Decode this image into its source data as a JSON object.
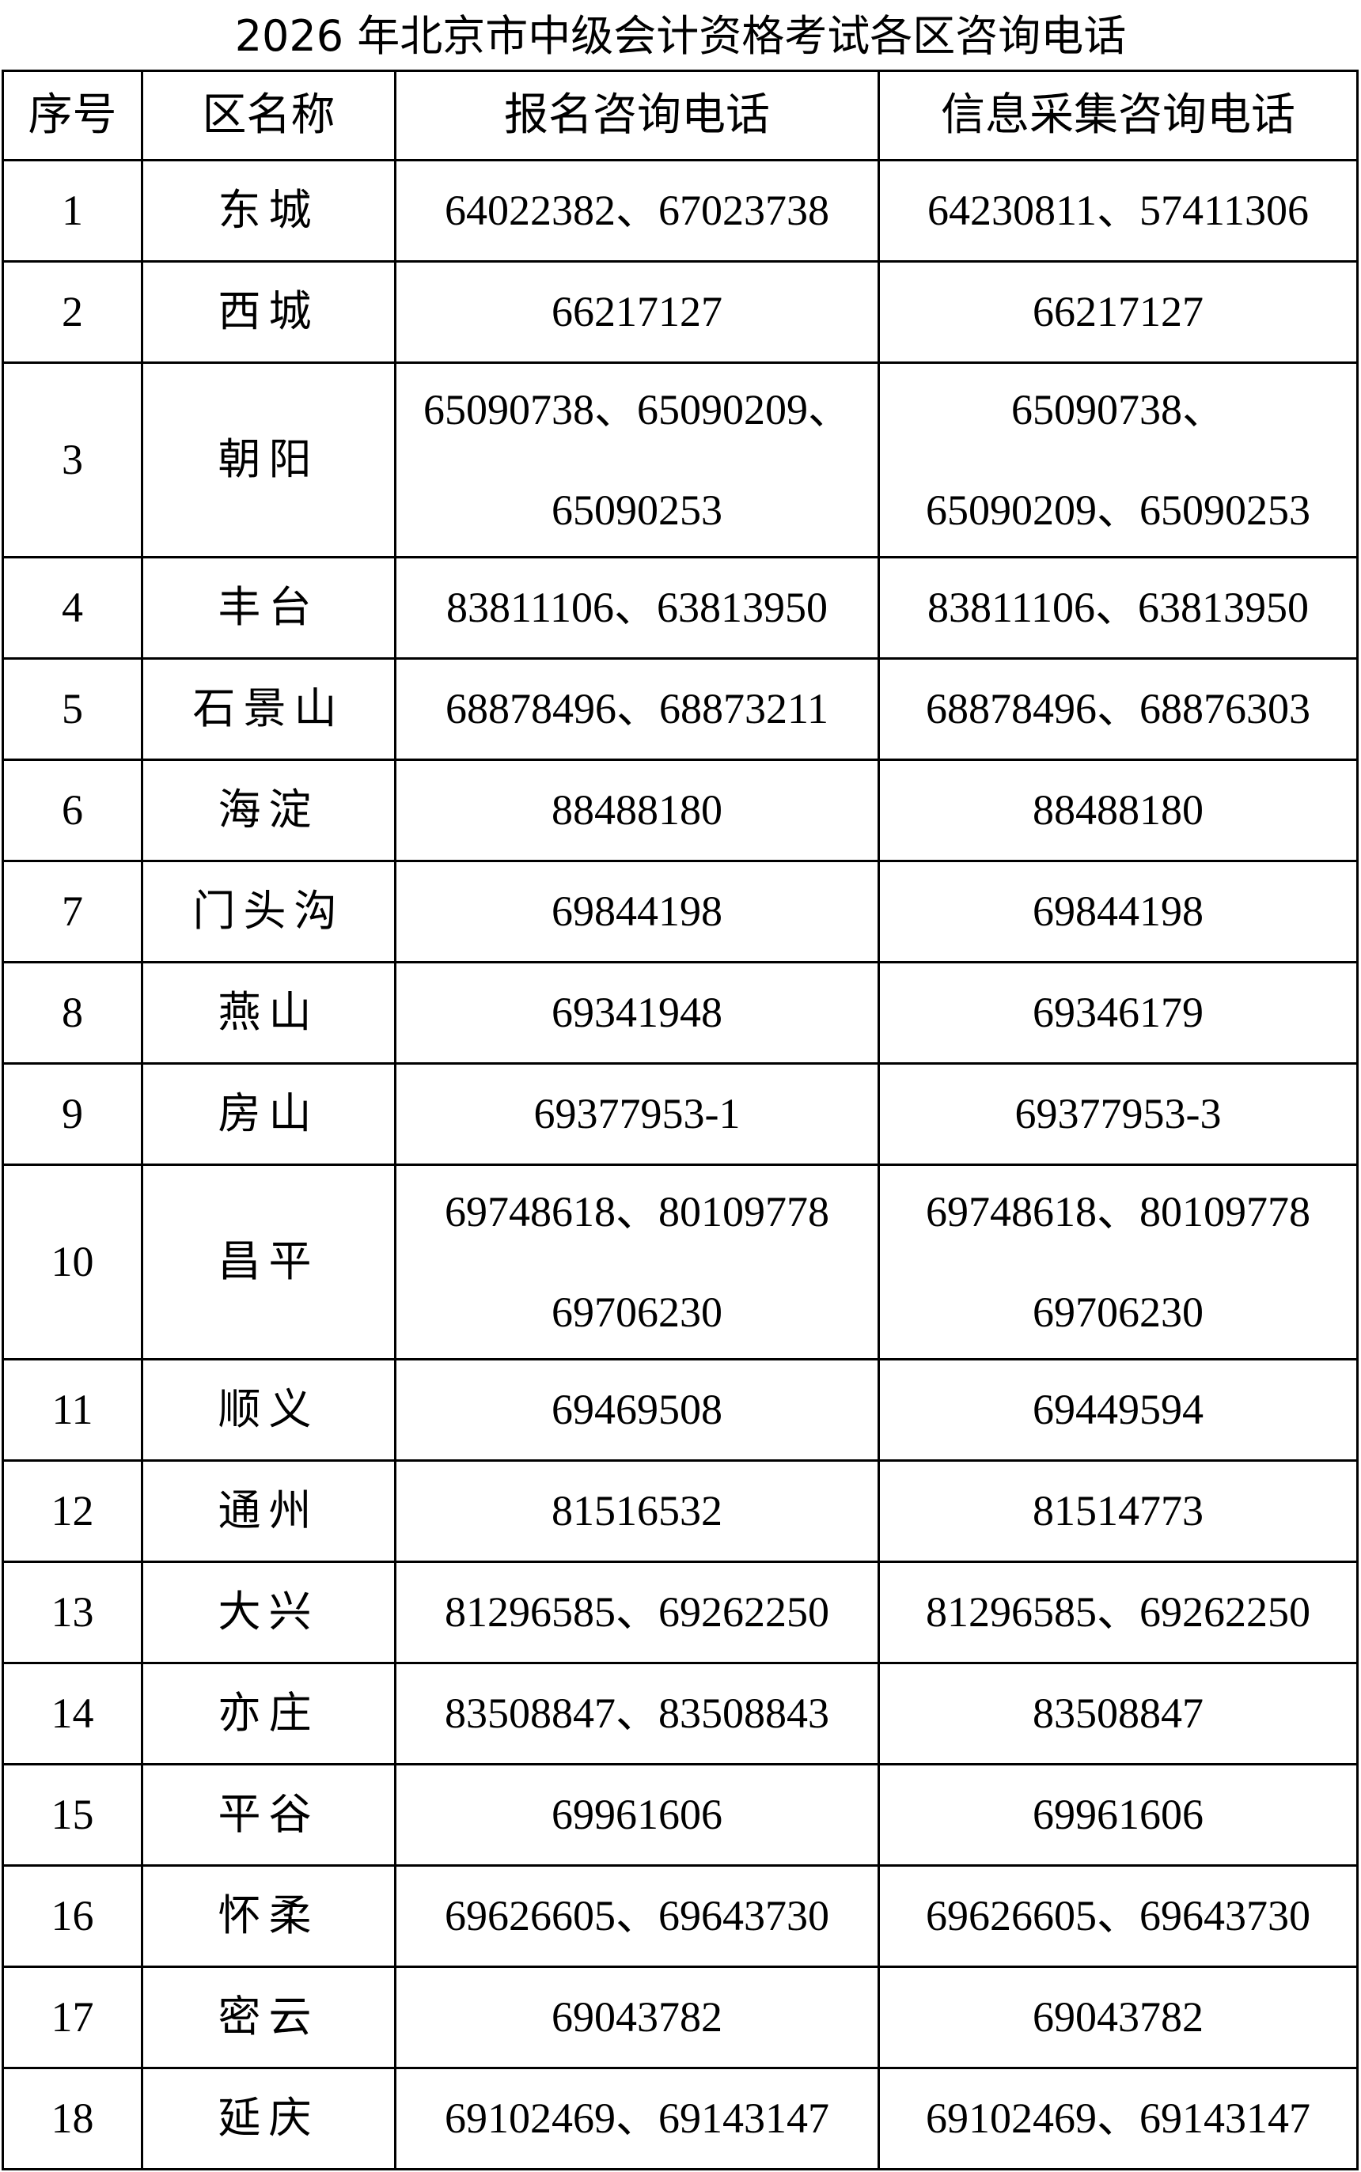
{
  "title": "2026 年北京市中级会计资格考试各区咨询电话",
  "headers": [
    "序号",
    "区名称",
    "报名咨询电话",
    "信息采集咨询电话"
  ],
  "rows": [
    {
      "no": "1",
      "district": "东城",
      "registration": [
        "64022382、67023738"
      ],
      "info": [
        "64230811、57411306"
      ]
    },
    {
      "no": "2",
      "district": "西城",
      "registration": [
        "66217127"
      ],
      "info": [
        "66217127"
      ]
    },
    {
      "no": "3",
      "district": "朝阳",
      "registration": [
        "65090738、65090209、",
        "65090253"
      ],
      "info": [
        "65090738、",
        "65090209、65090253"
      ]
    },
    {
      "no": "4",
      "district": "丰台",
      "registration": [
        "83811106、63813950"
      ],
      "info": [
        "83811106、63813950"
      ]
    },
    {
      "no": "5",
      "district": "石景山",
      "registration": [
        "68878496、68873211"
      ],
      "info": [
        "68878496、68876303"
      ]
    },
    {
      "no": "6",
      "district": "海淀",
      "registration": [
        "88488180"
      ],
      "info": [
        "88488180"
      ]
    },
    {
      "no": "7",
      "district": "门头沟",
      "registration": [
        "69844198"
      ],
      "info": [
        "69844198"
      ]
    },
    {
      "no": "8",
      "district": "燕山",
      "registration": [
        "69341948"
      ],
      "info": [
        "69346179"
      ]
    },
    {
      "no": "9",
      "district": "房山",
      "registration": [
        "69377953-1"
      ],
      "info": [
        "69377953-3"
      ]
    },
    {
      "no": "10",
      "district": "昌平",
      "registration": [
        "69748618、80109778",
        "69706230"
      ],
      "info": [
        "69748618、80109778",
        "69706230"
      ]
    },
    {
      "no": "11",
      "district": "顺义",
      "registration": [
        "69469508"
      ],
      "info": [
        "69449594"
      ]
    },
    {
      "no": "12",
      "district": "通州",
      "registration": [
        "81516532"
      ],
      "info": [
        "81514773"
      ]
    },
    {
      "no": "13",
      "district": "大兴",
      "registration": [
        "81296585、69262250"
      ],
      "info": [
        "81296585、69262250"
      ]
    },
    {
      "no": "14",
      "district": "亦庄",
      "registration": [
        "83508847、83508843"
      ],
      "info": [
        "83508847"
      ]
    },
    {
      "no": "15",
      "district": "平谷",
      "registration": [
        "69961606"
      ],
      "info": [
        "69961606"
      ]
    },
    {
      "no": "16",
      "district": "怀柔",
      "registration": [
        "69626605、69643730"
      ],
      "info": [
        "69626605、69643730"
      ]
    },
    {
      "no": "17",
      "district": "密云",
      "registration": [
        "69043782"
      ],
      "info": [
        "69043782"
      ]
    },
    {
      "no": "18",
      "district": "延庆",
      "registration": [
        "69102469、69143147"
      ],
      "info": [
        "69102469、69143147"
      ]
    }
  ]
}
